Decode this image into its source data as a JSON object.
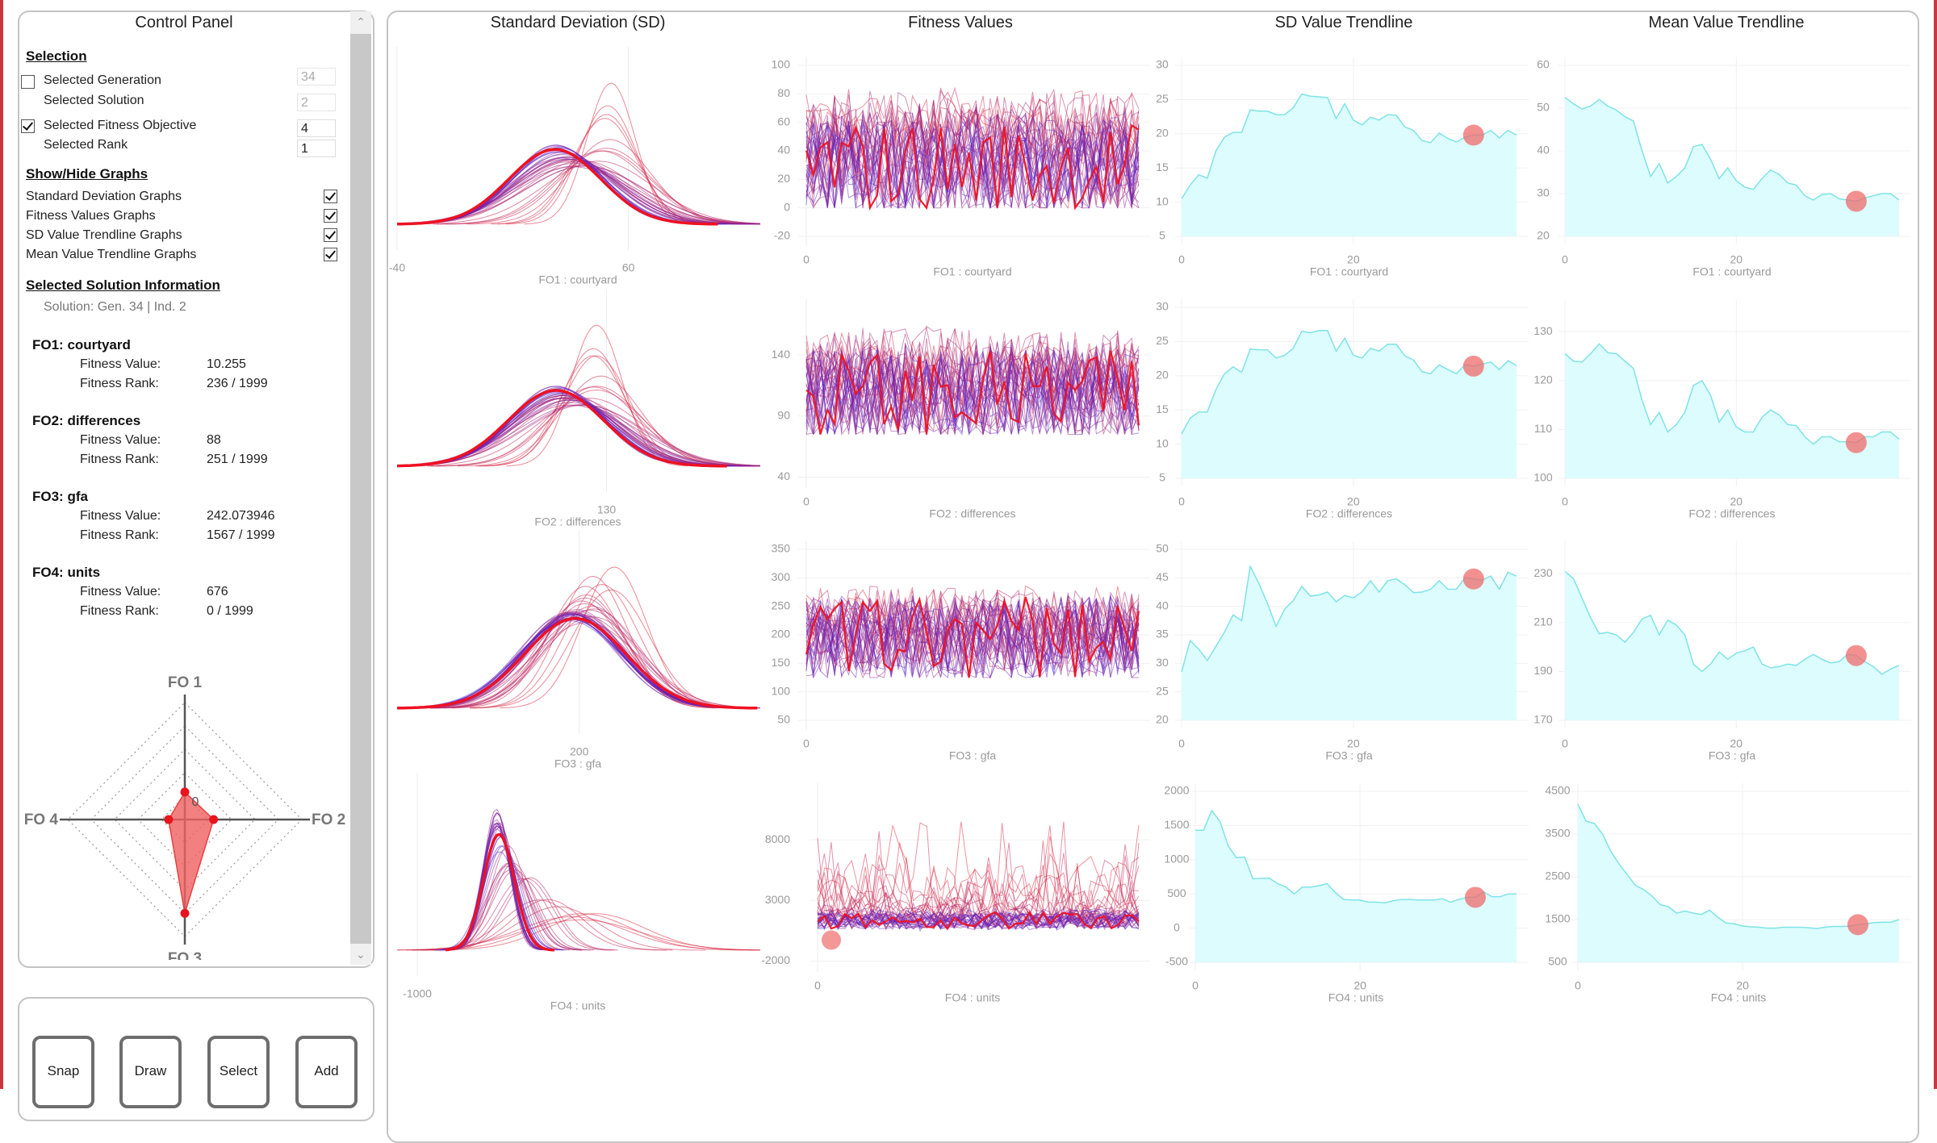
{
  "control_panel": {
    "title": "Control Panel",
    "selection": {
      "heading": "Selection",
      "generation": {
        "label": "Selected Generation",
        "value": "34",
        "checked": false
      },
      "solution": {
        "label": "Selected Solution",
        "value": "2"
      },
      "fitness_objective": {
        "label": "Selected Fitness Objective",
        "value": "4",
        "checked": true
      },
      "rank": {
        "label": "Selected Rank",
        "value": "1"
      }
    },
    "show_hide": {
      "heading": "Show/Hide Graphs",
      "items": [
        {
          "label": "Standard Deviation Graphs",
          "checked": true
        },
        {
          "label": "Fitness Values Graphs",
          "checked": true
        },
        {
          "label": "SD Value Trendline Graphs",
          "checked": true
        },
        {
          "label": "Mean Value Trendline Graphs",
          "checked": true
        }
      ]
    },
    "info": {
      "heading": "Selected Solution Information",
      "solution": "Solution: Gen. 34 | Ind. 2",
      "value_label": "Fitness Value:",
      "rank_label": "Fitness Rank:",
      "objectives": [
        {
          "heading": "FO1:  courtyard",
          "value": "10.255",
          "rank": "236 / 1999"
        },
        {
          "heading": "FO2:  differences",
          "value": "88",
          "rank": "251 / 1999"
        },
        {
          "heading": "FO3:  gfa",
          "value": "242.073946",
          "rank": "1567 / 1999"
        },
        {
          "heading": "FO4:  units",
          "value": "676",
          "rank": "0 / 1999"
        }
      ]
    },
    "radar": {
      "labels": [
        "FO 1",
        "FO 2",
        "FO 3",
        "FO 4"
      ],
      "values": [
        0.22,
        0.23,
        0.75,
        0.13
      ],
      "center_label": "0",
      "fill": "#f06060",
      "point_color": "#e8141e"
    },
    "buttons": [
      "Snap",
      "Draw",
      "Select",
      "Add"
    ]
  },
  "chart_data": {
    "type": "line",
    "column_titles": [
      "Standard Deviation (SD)",
      "Fitness Values",
      "SD Value Trendline",
      "Mean Value Trendline"
    ],
    "selected_generation": 34,
    "colors": {
      "early_generation": "#e0283c",
      "late_generation": "#5020d2",
      "selected": "#ee1122",
      "trend_fill": "#dcfcfd",
      "trend_line": "#7fe3e6",
      "marker": "#ef6b6b"
    },
    "rows": [
      {
        "xlabel": "FO1 : courtyard",
        "sd_graph": {
          "xticks": [
            -40,
            60
          ],
          "xlim": [
            -40,
            117
          ]
        },
        "fitness_graph": {
          "yticks": [
            -20,
            0,
            20,
            40,
            60,
            80,
            100
          ],
          "ylim": [
            -20,
            100
          ],
          "xticks": [
            0
          ],
          "value_range": [
            0,
            88
          ]
        },
        "sd_trend": {
          "yticks": [
            5,
            10,
            15,
            20,
            25,
            30
          ],
          "ylim": [
            5,
            30
          ],
          "xticks": [
            0,
            20
          ],
          "values": [
            10.5,
            12.5,
            14,
            13.5,
            17.5,
            19.5,
            20.2,
            20.2,
            23.5,
            23.3,
            23.3,
            22.8,
            22.8,
            23.8,
            25.8,
            25.5,
            25.4,
            25.3,
            22.2,
            24.4,
            22,
            21.3,
            22.4,
            22,
            22.8,
            22.7,
            21,
            20.5,
            19,
            18.7,
            20.1,
            19.3,
            18.8,
            19.5,
            19.8,
            19.8,
            20.5,
            19.4,
            20.5,
            19.8
          ]
        },
        "mean_trend": {
          "yticks": [
            20,
            30,
            40,
            50,
            60
          ],
          "ylim": [
            20,
            60
          ],
          "xticks": [
            0,
            20
          ],
          "values": [
            52.5,
            51,
            49.8,
            50.5,
            52,
            50.5,
            49.5,
            48,
            47,
            40,
            34,
            37,
            32.5,
            34,
            36,
            41,
            41.5,
            38,
            33.5,
            36,
            33,
            31.5,
            31,
            33.5,
            35.5,
            34.5,
            32.5,
            32,
            29.5,
            28.5,
            29.8,
            30,
            28.8,
            28.5,
            28.2,
            29,
            29.5,
            30,
            30,
            28.5
          ]
        }
      },
      {
        "xlabel": "FO2 : differences",
        "sd_graph": {
          "xticks": [
            130
          ],
          "xlim": [
            36,
            199
          ]
        },
        "fitness_graph": {
          "yticks": [
            40,
            90,
            140
          ],
          "ylim": [
            39,
            179
          ],
          "xticks": [
            0
          ],
          "value_range": [
            75,
            165
          ]
        },
        "sd_trend": {
          "yticks": [
            5,
            10,
            15,
            20,
            25,
            30
          ],
          "ylim": [
            5,
            30
          ],
          "xticks": [
            0,
            20
          ],
          "values": [
            11.5,
            13.8,
            14.7,
            14.7,
            18,
            20.3,
            21.3,
            20.5,
            23.9,
            23.8,
            23.8,
            22.6,
            23,
            24,
            26.5,
            26.3,
            26.6,
            26.6,
            23.6,
            25.5,
            23,
            22.6,
            24,
            23.6,
            24.6,
            24.6,
            22.9,
            22.3,
            20.6,
            20.3,
            21.6,
            20.9,
            20.3,
            21.6,
            21.4,
            21.7,
            22,
            20.9,
            22.2,
            21.5
          ]
        },
        "mean_trend": {
          "yticks": [
            100,
            110,
            120,
            130
          ],
          "ylim": [
            100,
            135
          ],
          "xticks": [
            0,
            20
          ],
          "values": [
            125.5,
            124,
            123.8,
            125.5,
            127.5,
            125.7,
            125.5,
            124,
            122.5,
            116,
            111,
            113.5,
            109.5,
            111,
            113.5,
            119,
            120,
            117,
            111.5,
            114,
            110.5,
            109.5,
            109.5,
            112.5,
            114,
            113,
            111,
            110.8,
            108.5,
            107,
            108.5,
            108.5,
            107.5,
            107.5,
            107.3,
            108.5,
            108.5,
            109.5,
            109.5,
            108
          ]
        }
      },
      {
        "xlabel": "FO3 : gfa",
        "sd_graph": {
          "xticks": [
            200
          ],
          "xlim": [
            39,
            360
          ]
        },
        "fitness_graph": {
          "yticks": [
            50,
            100,
            150,
            200,
            250,
            300,
            350
          ],
          "ylim": [
            50,
            350
          ],
          "xticks": [
            0
          ],
          "value_range": [
            125,
            312
          ]
        },
        "sd_trend": {
          "yticks": [
            20,
            25,
            30,
            35,
            40,
            45,
            50
          ],
          "ylim": [
            20,
            50
          ],
          "xticks": [
            0,
            20
          ],
          "values": [
            28.5,
            34,
            32.5,
            30.5,
            33,
            35.5,
            38.5,
            37.5,
            47,
            44,
            40.5,
            36.5,
            39.5,
            41,
            43.5,
            41.8,
            42,
            42.5,
            40.8,
            41.9,
            41.5,
            42.5,
            44.5,
            42.5,
            44.5,
            44.8,
            43.8,
            42.4,
            42.5,
            43,
            44.5,
            43,
            43,
            45,
            44.8,
            44.6,
            45.3,
            43,
            46,
            45.3
          ]
        },
        "mean_trend": {
          "yticks": [
            170,
            190,
            210,
            230
          ],
          "ylim": [
            170,
            240
          ],
          "xticks": [
            0,
            20
          ],
          "values": [
            231,
            228,
            220,
            212,
            205.5,
            206,
            205,
            202,
            206,
            211.5,
            213,
            205,
            211,
            209,
            205,
            193,
            190,
            193,
            198,
            195,
            197.5,
            198.5,
            200,
            193,
            191.5,
            192,
            193,
            192.5,
            195,
            197,
            195,
            193.5,
            194,
            197,
            196.5,
            194,
            192,
            188.8,
            191,
            192.5
          ]
        }
      },
      {
        "xlabel": "FO4 : units",
        "sd_graph": {
          "xticks": [
            -1000
          ],
          "xlim": [
            -1590,
            9000
          ]
        },
        "fitness_graph": {
          "yticks": [
            -2000,
            3000,
            8000
          ],
          "ylim": [
            -2100,
            12000
          ],
          "xticks": [
            0
          ],
          "value_range": [
            -200,
            9500
          ],
          "marker_value": 0
        },
        "sd_trend": {
          "yticks": [
            -500,
            0,
            500,
            1000,
            1500,
            2000
          ],
          "ylim": [
            -500,
            2000
          ],
          "xticks": [
            0,
            20
          ],
          "values": [
            1430,
            1430,
            1720,
            1560,
            1200,
            1030,
            1040,
            720,
            730,
            730,
            650,
            600,
            500,
            600,
            600,
            620,
            650,
            520,
            420,
            410,
            410,
            380,
            380,
            370,
            400,
            420,
            420,
            410,
            410,
            410,
            430,
            380,
            420,
            450,
            450,
            530,
            460,
            460,
            500,
            500
          ]
        },
        "mean_trend": {
          "yticks": [
            500,
            1500,
            2500,
            3500,
            4500
          ],
          "ylim": [
            500,
            4500
          ],
          "xticks": [
            0,
            20
          ],
          "values": [
            4200,
            3800,
            3750,
            3500,
            3100,
            2800,
            2550,
            2300,
            2200,
            2050,
            1850,
            1800,
            1650,
            1700,
            1650,
            1620,
            1720,
            1550,
            1420,
            1400,
            1350,
            1330,
            1320,
            1300,
            1300,
            1320,
            1320,
            1320,
            1310,
            1290,
            1320,
            1340,
            1340,
            1350,
            1380,
            1400,
            1430,
            1440,
            1440,
            1500
          ]
        }
      }
    ]
  }
}
